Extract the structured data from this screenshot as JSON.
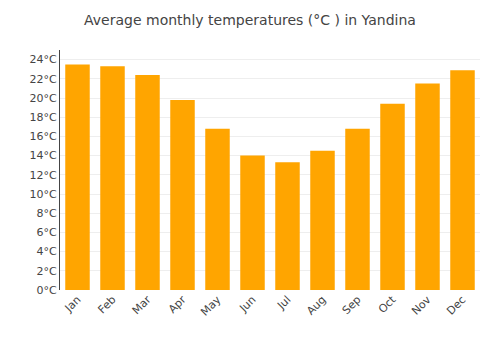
{
  "chart_data": {
    "type": "bar",
    "title": "Average monthly temperatures (°C ) in Yandina",
    "categories": [
      "Jan",
      "Feb",
      "Mar",
      "Apr",
      "May",
      "Jun",
      "Jul",
      "Aug",
      "Sep",
      "Oct",
      "Nov",
      "Dec"
    ],
    "values": [
      23.5,
      23.3,
      22.4,
      19.8,
      16.8,
      14.0,
      13.3,
      14.5,
      16.8,
      19.4,
      21.5,
      22.9
    ],
    "color": "#FFA500",
    "ylim": [
      0,
      25
    ],
    "yticks": [
      {
        "value": 0,
        "label": "0°C"
      },
      {
        "value": 2,
        "label": "2°C"
      },
      {
        "value": 4,
        "label": "4°C"
      },
      {
        "value": 6,
        "label": "6°C"
      },
      {
        "value": 8,
        "label": "8°C"
      },
      {
        "value": 10,
        "label": "10°C"
      },
      {
        "value": 12,
        "label": "12°C"
      },
      {
        "value": 14,
        "label": "14°C"
      },
      {
        "value": 16,
        "label": "16°C"
      },
      {
        "value": 18,
        "label": "18°C"
      },
      {
        "value": 20,
        "label": "20°C"
      },
      {
        "value": 22,
        "label": "22°C"
      },
      {
        "value": 24,
        "label": "24°C"
      }
    ],
    "grid": true
  }
}
